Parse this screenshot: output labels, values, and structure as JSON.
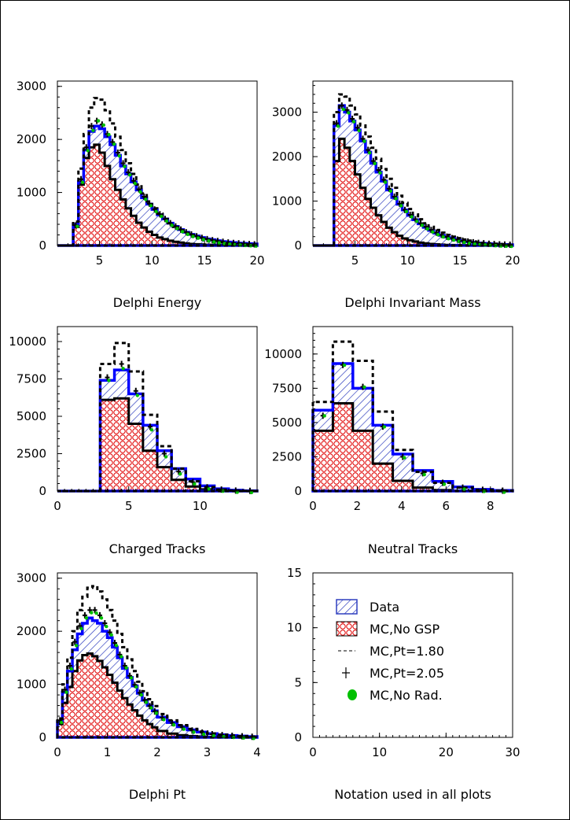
{
  "colors": {
    "data_fill": "#2f3fbf",
    "data_outline": "#0000ff",
    "mc_fill": "#e00000",
    "mc_outline": "#000000",
    "dashed": "#000000",
    "norad": "#00c000"
  },
  "legend": {
    "items": [
      {
        "label": "Data",
        "marker": "blue-hatch"
      },
      {
        "label": "MC,No GSP",
        "marker": "red-crosshatch"
      },
      {
        "label": "MC,Pt=1.80",
        "marker": "dashed-line"
      },
      {
        "label": "MC,Pt=2.05",
        "marker": "cross"
      },
      {
        "label": "MC,No Rad.",
        "marker": "green-dot"
      }
    ]
  },
  "chart_data": [
    {
      "type": "histogram",
      "xlabel": "Delphi Energy",
      "xlim": [
        1,
        20
      ],
      "ylim": [
        0,
        3100
      ],
      "xticks": [
        5,
        10,
        15,
        20
      ],
      "yticks": [
        0,
        1000,
        2000,
        3000
      ],
      "bin_edges": [
        1,
        2,
        2.5,
        3,
        3.5,
        4,
        4.5,
        5,
        5.5,
        6,
        6.5,
        7,
        7.5,
        8,
        8.5,
        9,
        9.5,
        10,
        10.5,
        11,
        11.5,
        12,
        12.5,
        13,
        13.5,
        14,
        14.5,
        15,
        15.5,
        16,
        16.5,
        17,
        17.5,
        18,
        18.5,
        19,
        19.5,
        20
      ],
      "series": [
        {
          "role": "data",
          "values": [
            0,
            0,
            400,
            1200,
            1800,
            2150,
            2250,
            2200,
            2050,
            1900,
            1700,
            1500,
            1350,
            1200,
            1050,
            900,
            780,
            680,
            580,
            500,
            420,
            360,
            300,
            250,
            210,
            180,
            150,
            125,
            110,
            90,
            75,
            65,
            55,
            45,
            40,
            35,
            30
          ]
        },
        {
          "role": "mc_no_gsp",
          "values": [
            0,
            0,
            350,
            1150,
            1650,
            1850,
            1900,
            1750,
            1500,
            1250,
            1050,
            870,
            700,
            560,
            430,
            340,
            260,
            200,
            150,
            120,
            90,
            70,
            55,
            40,
            30,
            25,
            20,
            15,
            12,
            10,
            8,
            6,
            5,
            4,
            3,
            2,
            2
          ]
        },
        {
          "role": "mc_pt180",
          "values": [
            0,
            0,
            450,
            1450,
            2100,
            2600,
            2780,
            2750,
            2550,
            2300,
            2050,
            1800,
            1550,
            1350,
            1150,
            980,
            830,
            700,
            600,
            500,
            420,
            350,
            290,
            240,
            200,
            160,
            130,
            110,
            90,
            75,
            60,
            50,
            40,
            33,
            27,
            22,
            18
          ]
        },
        {
          "role": "mc_pt205",
          "values": [
            0,
            0,
            380,
            1250,
            1850,
            2250,
            2350,
            2280,
            2100,
            1950,
            1750,
            1550,
            1380,
            1220,
            1060,
            920,
            790,
            680,
            590,
            500,
            420,
            360,
            300,
            250,
            210,
            175,
            145,
            120,
            100,
            85,
            70,
            58,
            48,
            40,
            33,
            27,
            22
          ]
        },
        {
          "role": "mc_no_rad",
          "values": [
            0,
            0,
            390,
            1220,
            1820,
            2200,
            2380,
            2300,
            2120,
            1940,
            1720,
            1520,
            1360,
            1200,
            1040,
            900,
            780,
            670,
            580,
            490,
            410,
            350,
            290,
            240,
            200,
            170,
            140,
            115,
            95,
            80,
            66,
            55,
            45,
            38,
            31,
            25,
            20
          ]
        }
      ]
    },
    {
      "type": "histogram",
      "xlabel": "Delphi Invariant Mass",
      "xlim": [
        1,
        20
      ],
      "ylim": [
        0,
        3700
      ],
      "xticks": [
        5,
        10,
        15,
        20
      ],
      "yticks": [
        0,
        1000,
        2000,
        3000
      ],
      "bin_edges": [
        1,
        2,
        2.5,
        3,
        3.5,
        4,
        4.5,
        5,
        5.5,
        6,
        6.5,
        7,
        7.5,
        8,
        8.5,
        9,
        9.5,
        10,
        10.5,
        11,
        11.5,
        12,
        12.5,
        13,
        13.5,
        14,
        14.5,
        15,
        15.5,
        16,
        16.5,
        17,
        17.5,
        18,
        18.5,
        19,
        19.5,
        20
      ],
      "series": [
        {
          "role": "data",
          "values": [
            0,
            0,
            0,
            2700,
            3150,
            3000,
            2800,
            2600,
            2350,
            2100,
            1850,
            1650,
            1450,
            1250,
            1080,
            930,
            800,
            680,
            580,
            490,
            410,
            340,
            280,
            230,
            190,
            160,
            130,
            105,
            85,
            70,
            58,
            48,
            40,
            33,
            27,
            22,
            18
          ]
        },
        {
          "role": "mc_no_gsp",
          "values": [
            0,
            0,
            0,
            1900,
            2400,
            2200,
            1900,
            1600,
            1300,
            1050,
            850,
            680,
            530,
            400,
            300,
            220,
            160,
            120,
            90,
            65,
            48,
            35,
            26,
            19,
            14,
            10,
            8,
            6,
            4,
            3,
            2,
            2,
            1,
            1,
            1,
            0,
            0
          ]
        },
        {
          "role": "mc_pt180",
          "values": [
            0,
            0,
            0,
            3000,
            3400,
            3350,
            3150,
            2950,
            2700,
            2450,
            2200,
            1950,
            1720,
            1500,
            1300,
            1120,
            960,
            820,
            700,
            590,
            500,
            420,
            350,
            290,
            240,
            200,
            165,
            135,
            110,
            90,
            74,
            60,
            50,
            40,
            33,
            27,
            22
          ]
        },
        {
          "role": "mc_pt205",
          "values": [
            0,
            0,
            0,
            2750,
            3150,
            3050,
            2850,
            2650,
            2400,
            2150,
            1900,
            1700,
            1480,
            1280,
            1100,
            940,
            800,
            690,
            590,
            500,
            420,
            350,
            290,
            240,
            200,
            165,
            135,
            110,
            90,
            74,
            60,
            50,
            40,
            33,
            27,
            22,
            18
          ]
        },
        {
          "role": "mc_no_rad",
          "values": [
            0,
            0,
            0,
            2720,
            3100,
            3020,
            2820,
            2620,
            2380,
            2120,
            1880,
            1670,
            1460,
            1260,
            1090,
            930,
            800,
            680,
            580,
            490,
            410,
            340,
            280,
            230,
            190,
            158,
            128,
            104,
            84,
            69,
            57,
            47,
            39,
            32,
            26,
            21,
            17
          ]
        }
      ]
    },
    {
      "type": "histogram",
      "xlabel": "Charged Tracks",
      "xlim": [
        0,
        14
      ],
      "ylim": [
        0,
        11000
      ],
      "xticks": [
        0,
        5,
        10
      ],
      "yticks": [
        0,
        2500,
        5000,
        7500,
        10000
      ],
      "bin_edges": [
        0,
        1,
        2,
        3,
        4,
        5,
        6,
        7,
        8,
        9,
        10,
        11,
        12,
        13,
        14
      ],
      "series": [
        {
          "role": "data",
          "values": [
            0,
            0,
            0,
            7400,
            8100,
            6500,
            4400,
            2700,
            1500,
            800,
            350,
            150,
            60,
            20
          ]
        },
        {
          "role": "mc_no_gsp",
          "values": [
            0,
            0,
            0,
            6100,
            6200,
            4500,
            2700,
            1600,
            750,
            300,
            110,
            40,
            10,
            0
          ]
        },
        {
          "role": "mc_pt180",
          "values": [
            0,
            0,
            0,
            8500,
            9900,
            8000,
            5100,
            3000,
            1500,
            650,
            260,
            100,
            30,
            10
          ]
        },
        {
          "role": "mc_pt205",
          "values": [
            0,
            0,
            0,
            7600,
            8500,
            6700,
            4300,
            2500,
            1300,
            600,
            250,
            100,
            30,
            10
          ]
        },
        {
          "role": "mc_no_rad",
          "values": [
            0,
            0,
            0,
            7500,
            8300,
            6500,
            4200,
            2400,
            1250,
            580,
            240,
            95,
            28,
            8
          ]
        }
      ]
    },
    {
      "type": "histogram",
      "xlabel": "Neutral Tracks",
      "xlim": [
        0,
        9
      ],
      "ylim": [
        0,
        12000
      ],
      "xticks": [
        0,
        2,
        4,
        6,
        8
      ],
      "yticks": [
        0,
        2500,
        5000,
        7500,
        10000
      ],
      "bin_edges": [
        0,
        0.9,
        1.8,
        2.7,
        3.6,
        4.5,
        5.4,
        6.3,
        7.2,
        8.1,
        9
      ],
      "series": [
        {
          "role": "data",
          "values": [
            5900,
            9300,
            7500,
            4800,
            2700,
            1500,
            700,
            300,
            120,
            40
          ]
        },
        {
          "role": "mc_no_gsp",
          "values": [
            4400,
            6400,
            4400,
            2000,
            750,
            250,
            70,
            20,
            5,
            0
          ]
        },
        {
          "role": "mc_pt180",
          "values": [
            6500,
            10900,
            9500,
            5800,
            3000,
            1400,
            600,
            250,
            90,
            30
          ]
        },
        {
          "role": "mc_pt205",
          "values": [
            5500,
            9200,
            7600,
            4700,
            2500,
            1300,
            600,
            250,
            90,
            30
          ]
        },
        {
          "role": "mc_no_rad",
          "values": [
            5600,
            9300,
            7700,
            4800,
            2550,
            1320,
            610,
            255,
            92,
            31
          ]
        }
      ]
    },
    {
      "type": "histogram",
      "xlabel": "Delphi Pt",
      "xlim": [
        0,
        4
      ],
      "ylim": [
        0,
        3100
      ],
      "xticks": [
        0,
        1,
        2,
        3,
        4
      ],
      "yticks": [
        0,
        1000,
        2000,
        3000
      ],
      "bin_edges": [
        0,
        0.1,
        0.2,
        0.3,
        0.4,
        0.5,
        0.6,
        0.7,
        0.8,
        0.9,
        1,
        1.1,
        1.2,
        1.3,
        1.4,
        1.5,
        1.6,
        1.7,
        1.8,
        1.9,
        2,
        2.2,
        2.4,
        2.6,
        2.8,
        3,
        3.2,
        3.4,
        3.6,
        3.8,
        4
      ],
      "series": [
        {
          "role": "data",
          "values": [
            300,
            850,
            1250,
            1650,
            1950,
            2150,
            2250,
            2200,
            2150,
            2000,
            1880,
            1700,
            1500,
            1300,
            1130,
            970,
            830,
            700,
            600,
            500,
            380,
            280,
            200,
            140,
            100,
            70,
            50,
            35,
            25,
            15
          ]
        },
        {
          "role": "mc_no_gsp",
          "values": [
            250,
            650,
            950,
            1250,
            1450,
            1550,
            1580,
            1530,
            1440,
            1320,
            1180,
            1030,
            880,
            740,
            620,
            510,
            410,
            320,
            250,
            190,
            120,
            70,
            40,
            25,
            15,
            10,
            6,
            4,
            2,
            1
          ]
        },
        {
          "role": "mc_pt180",
          "values": [
            350,
            1000,
            1500,
            2000,
            2400,
            2650,
            2820,
            2850,
            2750,
            2600,
            2400,
            2200,
            1950,
            1700,
            1470,
            1250,
            1050,
            870,
            720,
            590,
            440,
            320,
            230,
            160,
            110,
            75,
            50,
            35,
            25,
            15
          ]
        },
        {
          "role": "mc_pt205",
          "values": [
            320,
            900,
            1350,
            1800,
            2100,
            2300,
            2400,
            2400,
            2300,
            2150,
            1980,
            1780,
            1560,
            1350,
            1160,
            990,
            840,
            700,
            590,
            490,
            370,
            270,
            190,
            130,
            90,
            60,
            42,
            30,
            20,
            12
          ]
        },
        {
          "role": "mc_no_rad",
          "values": [
            310,
            880,
            1320,
            1760,
            2080,
            2280,
            2380,
            2370,
            2280,
            2120,
            1960,
            1760,
            1550,
            1340,
            1150,
            980,
            830,
            690,
            585,
            485,
            365,
            265,
            185,
            128,
            88,
            59,
            41,
            29,
            19,
            11
          ]
        }
      ]
    },
    {
      "type": "legend-panel",
      "xlabel": "Notation used in all plots",
      "xlim": [
        0,
        30
      ],
      "ylim": [
        0,
        15
      ],
      "xticks": [
        0,
        10,
        20,
        30
      ],
      "yticks": [
        0,
        5,
        10,
        15
      ]
    }
  ]
}
